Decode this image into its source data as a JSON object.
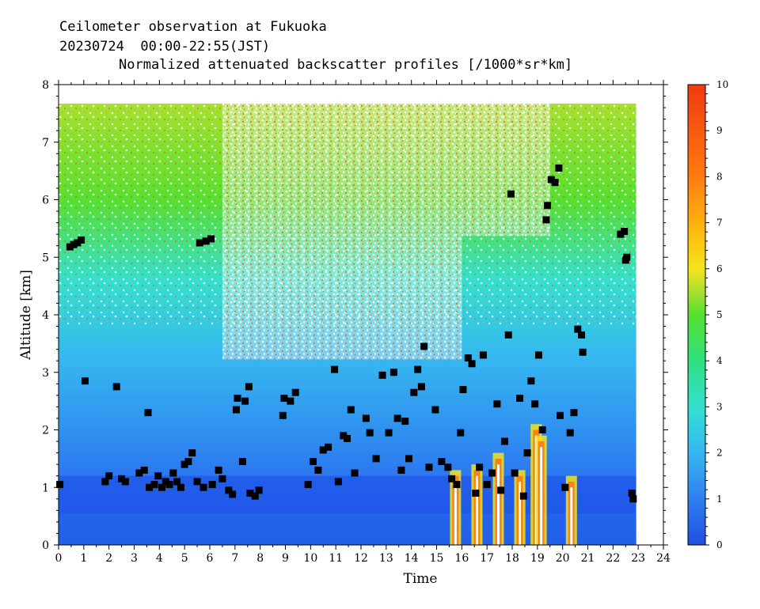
{
  "header": {
    "line1": "Ceilometer observation at Fukuoka",
    "line2": "20230724  00:00-22:55(JST)",
    "line3": "Normalized attenuated backscatter profiles [/1000*sr*km]"
  },
  "chart_data": {
    "type": "heatmap",
    "title": "Normalized attenuated backscatter profiles [/1000*sr*km]",
    "xlabel": "Time",
    "ylabel": "Altitude [km]",
    "xlim": [
      0,
      24
    ],
    "ylim": [
      0,
      8
    ],
    "x_ticks": [
      "0",
      "1",
      "2",
      "3",
      "4",
      "5",
      "6",
      "7",
      "8",
      "9",
      "10",
      "11",
      "12",
      "13",
      "14",
      "15",
      "16",
      "17",
      "18",
      "19",
      "20",
      "21",
      "22",
      "23",
      "24"
    ],
    "y_ticks": [
      "0",
      "1",
      "2",
      "3",
      "4",
      "5",
      "6",
      "7",
      "8"
    ],
    "data_extent": {
      "time_end": 22.92,
      "altitude_top": 7.67
    },
    "colorbar": {
      "range": [
        0,
        10
      ],
      "ticks": [
        "0",
        "1",
        "2",
        "3",
        "4",
        "5",
        "6",
        "7",
        "8",
        "9",
        "10"
      ],
      "colors": [
        "#1f4fe0",
        "#2f7ff0",
        "#36b6f0",
        "#33e0d0",
        "#2fe07f",
        "#55e02f",
        "#a8e02f",
        "#f4e41a",
        "#ffb010",
        "#ff7a10",
        "#f03a10"
      ]
    },
    "cloud_base_markers": [
      {
        "time": 0.05,
        "alt": 1.05
      },
      {
        "time": 0.45,
        "alt": 5.18
      },
      {
        "time": 0.6,
        "alt": 5.22
      },
      {
        "time": 0.75,
        "alt": 5.25
      },
      {
        "time": 0.9,
        "alt": 5.3
      },
      {
        "time": 1.05,
        "alt": 2.85
      },
      {
        "time": 1.85,
        "alt": 1.1
      },
      {
        "time": 2.0,
        "alt": 1.2
      },
      {
        "time": 2.3,
        "alt": 2.75
      },
      {
        "time": 2.5,
        "alt": 1.15
      },
      {
        "time": 2.65,
        "alt": 1.1
      },
      {
        "time": 3.2,
        "alt": 1.25
      },
      {
        "time": 3.4,
        "alt": 1.3
      },
      {
        "time": 3.55,
        "alt": 2.3
      },
      {
        "time": 3.6,
        "alt": 1.0
      },
      {
        "time": 3.8,
        "alt": 1.05
      },
      {
        "time": 3.95,
        "alt": 1.2
      },
      {
        "time": 4.1,
        "alt": 1.0
      },
      {
        "time": 4.25,
        "alt": 1.1
      },
      {
        "time": 4.4,
        "alt": 1.05
      },
      {
        "time": 4.55,
        "alt": 1.25
      },
      {
        "time": 4.7,
        "alt": 1.1
      },
      {
        "time": 4.85,
        "alt": 1.0
      },
      {
        "time": 5.0,
        "alt": 1.4
      },
      {
        "time": 5.15,
        "alt": 1.45
      },
      {
        "time": 5.3,
        "alt": 1.6
      },
      {
        "time": 5.5,
        "alt": 1.1
      },
      {
        "time": 5.6,
        "alt": 5.25
      },
      {
        "time": 5.75,
        "alt": 1.0
      },
      {
        "time": 5.85,
        "alt": 5.28
      },
      {
        "time": 6.05,
        "alt": 5.32
      },
      {
        "time": 6.1,
        "alt": 1.05
      },
      {
        "time": 6.35,
        "alt": 1.3
      },
      {
        "time": 6.5,
        "alt": 1.15
      },
      {
        "time": 6.75,
        "alt": 0.95
      },
      {
        "time": 6.9,
        "alt": 0.88
      },
      {
        "time": 7.05,
        "alt": 2.35
      },
      {
        "time": 7.1,
        "alt": 2.55
      },
      {
        "time": 7.3,
        "alt": 1.45
      },
      {
        "time": 7.4,
        "alt": 2.5
      },
      {
        "time": 7.55,
        "alt": 2.75
      },
      {
        "time": 7.6,
        "alt": 0.9
      },
      {
        "time": 7.8,
        "alt": 0.85
      },
      {
        "time": 7.95,
        "alt": 0.95
      },
      {
        "time": 8.9,
        "alt": 2.25
      },
      {
        "time": 8.95,
        "alt": 2.55
      },
      {
        "time": 9.2,
        "alt": 2.5
      },
      {
        "time": 9.4,
        "alt": 2.65
      },
      {
        "time": 9.9,
        "alt": 1.05
      },
      {
        "time": 10.1,
        "alt": 1.45
      },
      {
        "time": 10.3,
        "alt": 1.3
      },
      {
        "time": 10.5,
        "alt": 1.65
      },
      {
        "time": 10.7,
        "alt": 1.7
      },
      {
        "time": 10.95,
        "alt": 3.05
      },
      {
        "time": 11.1,
        "alt": 1.1
      },
      {
        "time": 11.3,
        "alt": 1.9
      },
      {
        "time": 11.45,
        "alt": 1.85
      },
      {
        "time": 11.6,
        "alt": 2.35
      },
      {
        "time": 11.75,
        "alt": 1.25
      },
      {
        "time": 12.2,
        "alt": 2.2
      },
      {
        "time": 12.35,
        "alt": 1.95
      },
      {
        "time": 12.6,
        "alt": 1.5
      },
      {
        "time": 12.85,
        "alt": 2.95
      },
      {
        "time": 13.1,
        "alt": 1.95
      },
      {
        "time": 13.3,
        "alt": 3.0
      },
      {
        "time": 13.45,
        "alt": 2.2
      },
      {
        "time": 13.6,
        "alt": 1.3
      },
      {
        "time": 13.75,
        "alt": 2.15
      },
      {
        "time": 13.9,
        "alt": 1.5
      },
      {
        "time": 14.1,
        "alt": 2.65
      },
      {
        "time": 14.25,
        "alt": 3.05
      },
      {
        "time": 14.4,
        "alt": 2.75
      },
      {
        "time": 14.5,
        "alt": 3.45
      },
      {
        "time": 14.7,
        "alt": 1.35
      },
      {
        "time": 14.95,
        "alt": 2.35
      },
      {
        "time": 15.2,
        "alt": 1.45
      },
      {
        "time": 15.45,
        "alt": 1.35
      },
      {
        "time": 15.6,
        "alt": 1.15
      },
      {
        "time": 15.8,
        "alt": 1.05
      },
      {
        "time": 15.95,
        "alt": 1.95
      },
      {
        "time": 16.05,
        "alt": 2.7
      },
      {
        "time": 16.25,
        "alt": 3.25
      },
      {
        "time": 16.4,
        "alt": 3.15
      },
      {
        "time": 16.55,
        "alt": 0.9
      },
      {
        "time": 16.7,
        "alt": 1.35
      },
      {
        "time": 16.85,
        "alt": 3.3
      },
      {
        "time": 17.0,
        "alt": 1.05
      },
      {
        "time": 17.2,
        "alt": 1.25
      },
      {
        "time": 17.4,
        "alt": 2.45
      },
      {
        "time": 17.55,
        "alt": 0.95
      },
      {
        "time": 17.7,
        "alt": 1.8
      },
      {
        "time": 17.85,
        "alt": 3.65
      },
      {
        "time": 17.95,
        "alt": 6.1
      },
      {
        "time": 18.1,
        "alt": 1.25
      },
      {
        "time": 18.3,
        "alt": 2.55
      },
      {
        "time": 18.45,
        "alt": 0.85
      },
      {
        "time": 18.6,
        "alt": 1.6
      },
      {
        "time": 18.75,
        "alt": 2.85
      },
      {
        "time": 18.9,
        "alt": 2.45
      },
      {
        "time": 19.05,
        "alt": 3.3
      },
      {
        "time": 19.2,
        "alt": 2.0
      },
      {
        "time": 19.35,
        "alt": 5.65
      },
      {
        "time": 19.4,
        "alt": 5.9
      },
      {
        "time": 19.55,
        "alt": 6.35
      },
      {
        "time": 19.7,
        "alt": 6.3
      },
      {
        "time": 19.85,
        "alt": 6.55
      },
      {
        "time": 19.9,
        "alt": 2.25
      },
      {
        "time": 20.1,
        "alt": 1.0
      },
      {
        "time": 20.3,
        "alt": 1.95
      },
      {
        "time": 20.45,
        "alt": 2.3
      },
      {
        "time": 20.6,
        "alt": 3.75
      },
      {
        "time": 20.75,
        "alt": 3.65
      },
      {
        "time": 20.8,
        "alt": 3.35
      },
      {
        "time": 22.3,
        "alt": 5.4
      },
      {
        "time": 22.45,
        "alt": 5.45
      },
      {
        "time": 22.5,
        "alt": 4.95
      },
      {
        "time": 22.55,
        "alt": 5.0
      },
      {
        "time": 22.75,
        "alt": 0.9
      },
      {
        "time": 22.8,
        "alt": 0.8
      }
    ]
  }
}
